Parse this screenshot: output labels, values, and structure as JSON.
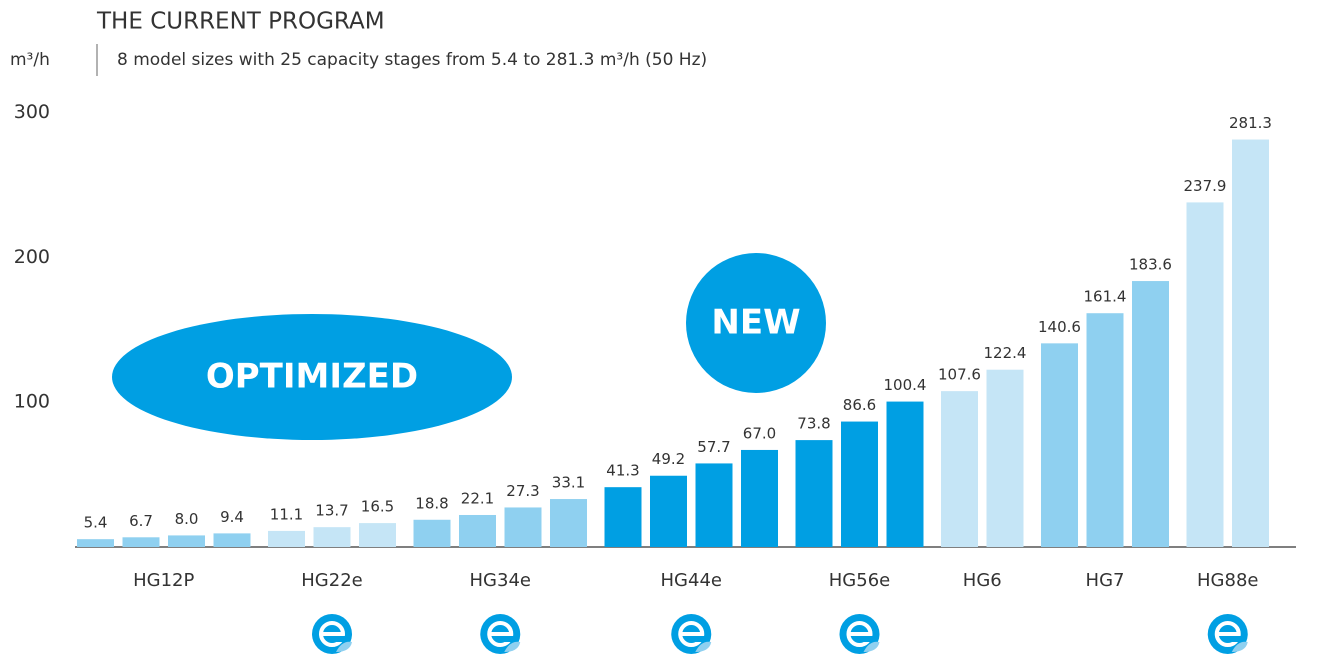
{
  "chart_data": {
    "type": "bar",
    "title": "THE CURRENT PROGRAM",
    "subtitle": "8 model sizes with 25 capacity stages from 5.4 to 281.3 m³/h (50 Hz)",
    "y_axis_label": "m³/h",
    "annotations": [
      "OPTIMIZED",
      "NEW"
    ],
    "ylim": [
      0,
      330
    ],
    "yticks": [
      100,
      200,
      300
    ],
    "groups": [
      {
        "name": "HG12P",
        "color": "#8fd0f0",
        "eco": false,
        "values": [
          5.4,
          6.7,
          8.0,
          9.4
        ],
        "value_labels": [
          "5.4",
          "6.7",
          "8.0",
          "9.4"
        ]
      },
      {
        "name": "HG22e",
        "color": "#c5e5f6",
        "eco": true,
        "values": [
          11.1,
          13.7,
          16.5
        ],
        "value_labels": [
          "11.1",
          "13.7",
          "16.5"
        ]
      },
      {
        "name": "HG34e",
        "color": "#8fd0f0",
        "eco": true,
        "values": [
          18.8,
          22.1,
          27.3,
          33.1
        ],
        "value_labels": [
          "18.8",
          "22.1",
          "27.3",
          "33.1"
        ]
      },
      {
        "name": "HG44e",
        "color": "#009fe3",
        "eco": true,
        "values": [
          41.3,
          49.2,
          57.7,
          67.0
        ],
        "value_labels": [
          "41.3",
          "49.2",
          "57.7",
          "67.0"
        ]
      },
      {
        "name": "HG56e",
        "color": "#009fe3",
        "eco": true,
        "values": [
          73.8,
          86.6,
          100.4
        ],
        "value_labels": [
          "73.8",
          "86.6",
          "100.4"
        ]
      },
      {
        "name": "HG6",
        "color": "#c5e5f6",
        "eco": false,
        "values": [
          107.6,
          122.4
        ],
        "value_labels": [
          "107.6",
          "122.4"
        ]
      },
      {
        "name": "HG7",
        "color": "#8fd0f0",
        "eco": false,
        "values": [
          140.6,
          161.4,
          183.6
        ],
        "value_labels": [
          "140.6",
          "161.4",
          "183.6"
        ]
      },
      {
        "name": "HG88e",
        "color": "#c5e5f6",
        "eco": true,
        "values": [
          237.9,
          281.3
        ],
        "value_labels": [
          "237.9",
          "281.3"
        ]
      }
    ]
  }
}
